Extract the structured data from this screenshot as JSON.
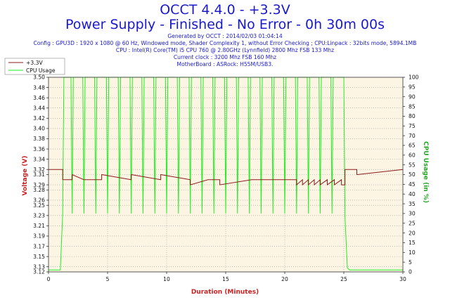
{
  "header": {
    "title_line1": "OCCT 4.4.0 - +3.3V",
    "title_line2": "Power Supply - Finished - No Error - 0h 30m 00s",
    "generated": "Generated by OCCT : 2014/02/03 01:04:14",
    "config": "Config : GPU3D : 1920 x 1080 @ 60 Hz, Windowed mode, Shader Complexity 1, without Error Checking ; CPU:Linpack : 32bits mode, 5894.1MB",
    "cpu": "CPU : Intel(R) Core(TM) i5 CPU 760 @ 2.80GHz (Lynnfield) 2800 Mhz FSB 133 Mhz",
    "clock": "Current clock : 3200 Mhz FSB 160 Mhz",
    "motherboard": "MotherBoard : ASRock: H55M/USB3."
  },
  "colors": {
    "title": "#1a1acc",
    "plot_bg": "#fdf5e4",
    "voltage": "#8b1a1a",
    "cpu": "#22ee22",
    "xlabel": "#cc2222",
    "ylabel_left": "#cc2222",
    "ylabel_right": "#22aa22"
  },
  "chart_data": {
    "type": "line",
    "xlabel": "Duration (Minutes)",
    "ylabel": "Voltage (V)",
    "ylabel_right": "CPU Usage (in %)",
    "xlim": [
      0,
      30
    ],
    "ylim": [
      3.12,
      3.5
    ],
    "ylim_right": [
      0,
      100
    ],
    "x_ticks": [
      0,
      5,
      10,
      15,
      20,
      25,
      30
    ],
    "y_ticks": [
      3.12,
      3.13,
      3.15,
      3.17,
      3.19,
      3.21,
      3.23,
      3.25,
      3.26,
      3.28,
      3.29,
      3.31,
      3.32,
      3.34,
      3.36,
      3.38,
      3.4,
      3.42,
      3.44,
      3.46,
      3.48,
      3.5
    ],
    "y_tick_labels": [
      "3.12",
      "3.13",
      "3.15",
      "3.17",
      "3.19",
      "3.21",
      "3.23",
      "3.25",
      "3.26",
      "3.28",
      "3.29",
      "3.31",
      "3.32",
      "3.34",
      "3.36",
      "3.38",
      "3.40",
      "3.42",
      "3.44",
      "3.46",
      "3.48",
      "3.50"
    ],
    "y_ticks_right": [
      0,
      5,
      10,
      15,
      20,
      25,
      30,
      35,
      40,
      45,
      50,
      55,
      60,
      65,
      70,
      75,
      80,
      85,
      90,
      95,
      100
    ],
    "grid": true,
    "legend_position": "top-left",
    "series": [
      {
        "name": "+3.3V",
        "axis": "left",
        "note": "voltage stays at ~3.30 V during load, ~3.32 V when idle, with short dips to 3.29",
        "x": [
          0,
          1.2,
          1.2,
          2.0,
          2.0,
          3.0,
          3.0,
          4.5,
          4.5,
          7.0,
          7.0,
          9.5,
          9.5,
          12.0,
          12.0,
          13.5,
          13.5,
          14.5,
          14.5,
          17.2,
          17.2,
          21.0,
          21.0,
          21.5,
          21.5,
          22.0,
          22.0,
          22.5,
          22.5,
          23.0,
          23.0,
          23.6,
          23.6,
          24.2,
          24.2,
          24.8,
          24.8,
          25.1,
          25.1,
          26.1,
          26.1,
          30.0
        ],
        "y": [
          3.32,
          3.32,
          3.3,
          3.3,
          3.31,
          3.3,
          3.3,
          3.3,
          3.31,
          3.3,
          3.31,
          3.3,
          3.31,
          3.3,
          3.29,
          3.3,
          3.3,
          3.3,
          3.29,
          3.3,
          3.3,
          3.3,
          3.29,
          3.3,
          3.29,
          3.3,
          3.29,
          3.3,
          3.29,
          3.3,
          3.29,
          3.3,
          3.29,
          3.3,
          3.29,
          3.3,
          3.29,
          3.29,
          3.32,
          3.32,
          3.31,
          3.32
        ]
      },
      {
        "name": "CPU Usage",
        "axis": "right",
        "note": "load starts at 1 min: CPU at 100% with periodic drops to ~30%, then 0-2% after 25 min",
        "x": [
          0,
          1.0,
          1.2,
          1.3,
          1.9,
          2.0,
          2.1,
          2.9,
          3.0,
          3.1,
          3.9,
          4.0,
          4.1,
          4.9,
          5.0,
          5.1,
          5.9,
          6.0,
          6.1,
          6.9,
          7.0,
          7.1,
          7.9,
          8.0,
          8.1,
          8.9,
          9.0,
          9.1,
          9.9,
          10.0,
          10.1,
          10.9,
          11.0,
          11.1,
          11.9,
          12.0,
          12.1,
          12.9,
          13.0,
          13.1,
          13.9,
          14.0,
          14.1,
          14.9,
          15.0,
          15.1,
          15.9,
          16.0,
          16.1,
          16.9,
          17.0,
          17.1,
          17.9,
          18.0,
          18.1,
          18.9,
          19.0,
          19.1,
          19.9,
          20.0,
          20.1,
          20.9,
          21.0,
          21.1,
          21.9,
          22.0,
          22.1,
          22.9,
          23.0,
          23.1,
          23.9,
          24.0,
          24.1,
          24.9,
          25.0,
          25.1,
          25.3,
          25.5,
          26.0,
          30.0
        ],
        "y": [
          1,
          1,
          30,
          100,
          100,
          30,
          100,
          100,
          30,
          100,
          100,
          30,
          100,
          100,
          30,
          100,
          100,
          30,
          100,
          100,
          30,
          100,
          100,
          30,
          100,
          100,
          30,
          100,
          100,
          30,
          100,
          100,
          30,
          100,
          100,
          30,
          100,
          100,
          30,
          100,
          100,
          30,
          100,
          100,
          30,
          100,
          100,
          30,
          100,
          100,
          30,
          100,
          100,
          30,
          100,
          100,
          30,
          100,
          100,
          30,
          100,
          100,
          30,
          100,
          100,
          30,
          100,
          100,
          30,
          100,
          100,
          30,
          100,
          100,
          100,
          28,
          2,
          1,
          1,
          1
        ]
      }
    ]
  }
}
